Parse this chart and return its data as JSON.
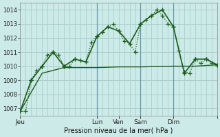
{
  "background_color": "#cceae7",
  "grid_color": "#aacfcc",
  "line_color": "#1a5c1a",
  "title": "Pression niveau de la mer( hPa )",
  "ylim": [
    1006.5,
    1014.5
  ],
  "yticks": [
    1007,
    1008,
    1009,
    1010,
    1011,
    1012,
    1013,
    1014
  ],
  "xlim": [
    0,
    108
  ],
  "xtick_positions": [
    0,
    42,
    54,
    66,
    84,
    108
  ],
  "xtick_labels": [
    "Jeu",
    "Lun",
    "Ven",
    "Sam",
    "Dim",
    ""
  ],
  "vline_positions": [
    42,
    66,
    84
  ],
  "line1_x": [
    0,
    3,
    6,
    9,
    12,
    15,
    18,
    21,
    24,
    27,
    30,
    33,
    36,
    39,
    42,
    45,
    48,
    51,
    54,
    57,
    60,
    63,
    66,
    69,
    72,
    75,
    78,
    81,
    84,
    87,
    90,
    93,
    96,
    99,
    102,
    105,
    108
  ],
  "line1_y": [
    1006.8,
    1006.8,
    1009.0,
    1009.7,
    1010.0,
    1010.8,
    1011.0,
    1010.8,
    1010.0,
    1010.0,
    1010.5,
    1010.4,
    1010.3,
    1011.7,
    1012.1,
    1012.4,
    1012.8,
    1013.0,
    1012.5,
    1011.8,
    1011.6,
    1011.0,
    1013.0,
    1013.3,
    1013.6,
    1014.0,
    1013.6,
    1013.0,
    1012.8,
    1011.1,
    1009.6,
    1009.5,
    1010.5,
    1010.2,
    1010.5,
    1010.2,
    1010.1
  ],
  "line2_x": [
    0,
    6,
    12,
    18,
    24,
    30,
    36,
    42,
    48,
    54,
    60,
    66,
    72,
    78,
    84,
    90,
    96,
    102,
    108
  ],
  "line2_y": [
    1006.8,
    1009.0,
    1010.0,
    1011.0,
    1010.0,
    1010.5,
    1010.3,
    1012.1,
    1012.8,
    1012.5,
    1011.6,
    1013.0,
    1013.6,
    1014.0,
    1012.8,
    1009.5,
    1010.5,
    1010.5,
    1010.1
  ],
  "line3_x": [
    0,
    12,
    24,
    36,
    42,
    54,
    66,
    84,
    96,
    108
  ],
  "line3_y": [
    1006.8,
    1009.5,
    1009.9,
    1009.9,
    1009.9,
    1009.95,
    1009.95,
    1010.0,
    1010.0,
    1010.1
  ],
  "marker_size": 4,
  "lw1": 0.9,
  "lw2": 1.2,
  "lw3": 1.0
}
